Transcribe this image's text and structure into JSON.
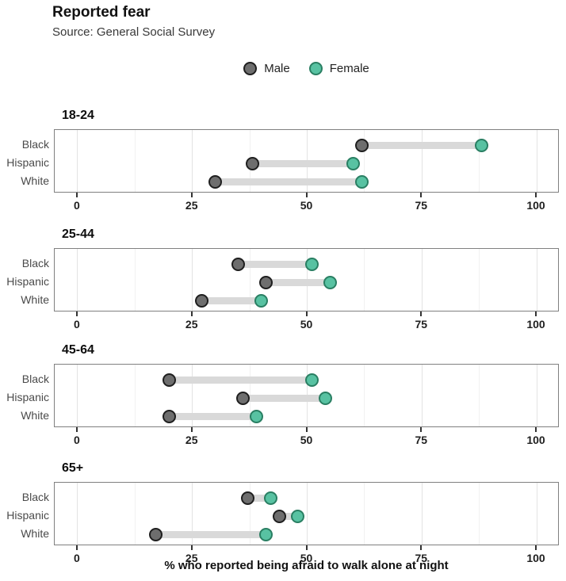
{
  "chart_data": {
    "type": "scatter",
    "variant": "dumbbell",
    "title": "Reported fear",
    "subtitle": "Source: General Social Survey",
    "xlabel": "% who reported being afraid to walk alone at night",
    "xlim": [
      -5,
      105
    ],
    "xticks": [
      0,
      25,
      50,
      75,
      100
    ],
    "minor_ticks": [
      12.5,
      37.5,
      62.5,
      87.5
    ],
    "grid": true,
    "legend_position": "top-center",
    "legend": [
      {
        "name": "Male",
        "fill": "#6e6e6e",
        "stroke": "#1f1f1f"
      },
      {
        "name": "Female",
        "fill": "#58c2a2",
        "stroke": "#2a7f63"
      }
    ],
    "series_keys": [
      "male",
      "female"
    ],
    "panels": [
      {
        "age_group": "18-24",
        "rows": [
          {
            "label": "Black",
            "male": 62,
            "female": 88
          },
          {
            "label": "Hispanic",
            "male": 38,
            "female": 60
          },
          {
            "label": "White",
            "male": 30,
            "female": 62
          }
        ]
      },
      {
        "age_group": "25-44",
        "rows": [
          {
            "label": "Black",
            "male": 35,
            "female": 51
          },
          {
            "label": "Hispanic",
            "male": 41,
            "female": 55
          },
          {
            "label": "White",
            "male": 27,
            "female": 40
          }
        ]
      },
      {
        "age_group": "45-64",
        "rows": [
          {
            "label": "Black",
            "male": 20,
            "female": 51
          },
          {
            "label": "Hispanic",
            "male": 36,
            "female": 54
          },
          {
            "label": "White",
            "male": 20,
            "female": 39
          }
        ]
      },
      {
        "age_group": "65+",
        "rows": [
          {
            "label": "Black",
            "male": 37,
            "female": 42
          },
          {
            "label": "Hispanic",
            "male": 44,
            "female": 48
          },
          {
            "label": "White",
            "male": 17,
            "female": 41
          }
        ]
      }
    ],
    "colors": {
      "male_fill": "#6e6e6e",
      "male_stroke": "#1f1f1f",
      "female_fill": "#58c2a2",
      "female_stroke": "#2a7f63",
      "connector": "#d9d9d9",
      "panel_border": "#808080",
      "grid_major": "#e3e3e3",
      "grid_minor": "#f1f1f1"
    }
  }
}
